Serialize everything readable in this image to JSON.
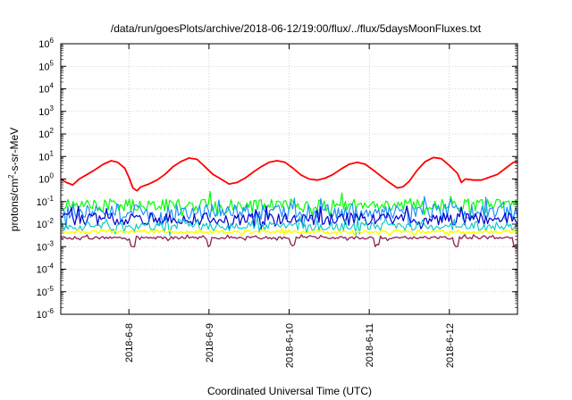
{
  "chart_data": {
    "type": "line",
    "title": "/data/run/goesPlots/archive/2018-06-12/19:00/flux/../flux/5daysMoonFluxes.txt",
    "xlabel": "Coordinated Universal Time (UTC)",
    "ylabel": "protons/cm2-s-sr-MeV",
    "ylabel_parts": {
      "base": "protons/cm",
      "sup": "2",
      "rest": "-s-sr-MeV"
    },
    "yscale": "log",
    "ylim": [
      1e-06,
      1000000.0
    ],
    "xlim_days": [
      7.15,
      12.85
    ],
    "x_ticks": [
      {
        "day": 8,
        "label": "2018-6-8"
      },
      {
        "day": 9,
        "label": "2018-6-9"
      },
      {
        "day": 10,
        "label": "2018-6-10"
      },
      {
        "day": 11,
        "label": "2018-6-11"
      },
      {
        "day": 12,
        "label": "2018-6-12"
      }
    ],
    "y_ticks": [
      {
        "exp": 6,
        "base": "10",
        "sup": "6"
      },
      {
        "exp": 5,
        "base": "10",
        "sup": "5"
      },
      {
        "exp": 4,
        "base": "10",
        "sup": "4"
      },
      {
        "exp": 3,
        "base": "10",
        "sup": "3"
      },
      {
        "exp": 2,
        "base": "10",
        "sup": "2"
      },
      {
        "exp": 1,
        "base": "10",
        "sup": "1"
      },
      {
        "exp": 0,
        "base": "10",
        "sup": "0"
      },
      {
        "exp": -1,
        "base": "10",
        "sup": "-1"
      },
      {
        "exp": -2,
        "base": "10",
        "sup": "-2"
      },
      {
        "exp": -3,
        "base": "10",
        "sup": "-3"
      },
      {
        "exp": -4,
        "base": "10",
        "sup": "-4"
      },
      {
        "exp": -5,
        "base": "10",
        "sup": "-5"
      },
      {
        "exp": -6,
        "base": "10",
        "sup": "-6"
      }
    ],
    "grid": true,
    "series": [
      {
        "color": "#ff0000",
        "width": 1.8,
        "points": [
          [
            7.15,
            1.0
          ],
          [
            7.22,
            0.7
          ],
          [
            7.3,
            0.55
          ],
          [
            7.38,
            1.0
          ],
          [
            7.48,
            1.6
          ],
          [
            7.58,
            2.6
          ],
          [
            7.68,
            4.5
          ],
          [
            7.78,
            6.5
          ],
          [
            7.86,
            5.5
          ],
          [
            7.95,
            3.0
          ],
          [
            8.0,
            1.2
          ],
          [
            8.05,
            0.4
          ],
          [
            8.1,
            0.3
          ],
          [
            8.15,
            0.45
          ],
          [
            8.25,
            0.6
          ],
          [
            8.35,
            0.9
          ],
          [
            8.45,
            1.6
          ],
          [
            8.55,
            3.5
          ],
          [
            8.65,
            6.0
          ],
          [
            8.75,
            8.5
          ],
          [
            8.85,
            7.5
          ],
          [
            8.95,
            3.5
          ],
          [
            9.05,
            1.6
          ],
          [
            9.15,
            1.0
          ],
          [
            9.25,
            0.6
          ],
          [
            9.35,
            0.7
          ],
          [
            9.45,
            1.1
          ],
          [
            9.55,
            2.0
          ],
          [
            9.65,
            3.5
          ],
          [
            9.75,
            5.5
          ],
          [
            9.85,
            6.5
          ],
          [
            9.95,
            5.5
          ],
          [
            10.05,
            3.0
          ],
          [
            10.15,
            1.5
          ],
          [
            10.25,
            1.0
          ],
          [
            10.35,
            0.9
          ],
          [
            10.45,
            1.1
          ],
          [
            10.55,
            1.6
          ],
          [
            10.65,
            2.8
          ],
          [
            10.75,
            4.5
          ],
          [
            10.85,
            5.5
          ],
          [
            10.95,
            4.5
          ],
          [
            11.05,
            2.5
          ],
          [
            11.15,
            1.3
          ],
          [
            11.25,
            0.7
          ],
          [
            11.35,
            0.4
          ],
          [
            11.42,
            0.45
          ],
          [
            11.5,
            0.8
          ],
          [
            11.6,
            2.5
          ],
          [
            11.7,
            6.0
          ],
          [
            11.8,
            9.0
          ],
          [
            11.9,
            8.0
          ],
          [
            12.0,
            4.0
          ],
          [
            12.1,
            1.8
          ],
          [
            12.15,
            0.7
          ],
          [
            12.2,
            1.0
          ],
          [
            12.3,
            0.9
          ],
          [
            12.4,
            0.9
          ],
          [
            12.5,
            1.2
          ],
          [
            12.6,
            1.6
          ],
          [
            12.7,
            3.0
          ],
          [
            12.8,
            5.5
          ],
          [
            12.85,
            6.0
          ]
        ]
      },
      {
        "color": "#00ff00",
        "width": 1.2,
        "base": 0.07,
        "spread": 0.55,
        "seed": 11,
        "dips": []
      },
      {
        "color": "#1e90ff",
        "width": 1.2,
        "base": 0.035,
        "spread": 0.7,
        "seed": 23,
        "dips": []
      },
      {
        "color": "#0000cc",
        "width": 1.2,
        "base": 0.017,
        "spread": 0.55,
        "seed": 37,
        "dips": []
      },
      {
        "color": "#00c8c8",
        "width": 1.1,
        "base": 0.008,
        "spread": 0.4,
        "seed": 41,
        "dips": []
      },
      {
        "color": "#ffff00",
        "width": 1.5,
        "base": 0.0045,
        "spread": 0.15,
        "seed": 53,
        "dips": []
      },
      {
        "color": "#8b2252",
        "width": 1.3,
        "base": 0.0025,
        "spread": 0.12,
        "seed": 67,
        "dips": [
          8.05,
          9.0,
          10.05,
          11.1,
          12.08,
          12.82
        ]
      }
    ]
  }
}
